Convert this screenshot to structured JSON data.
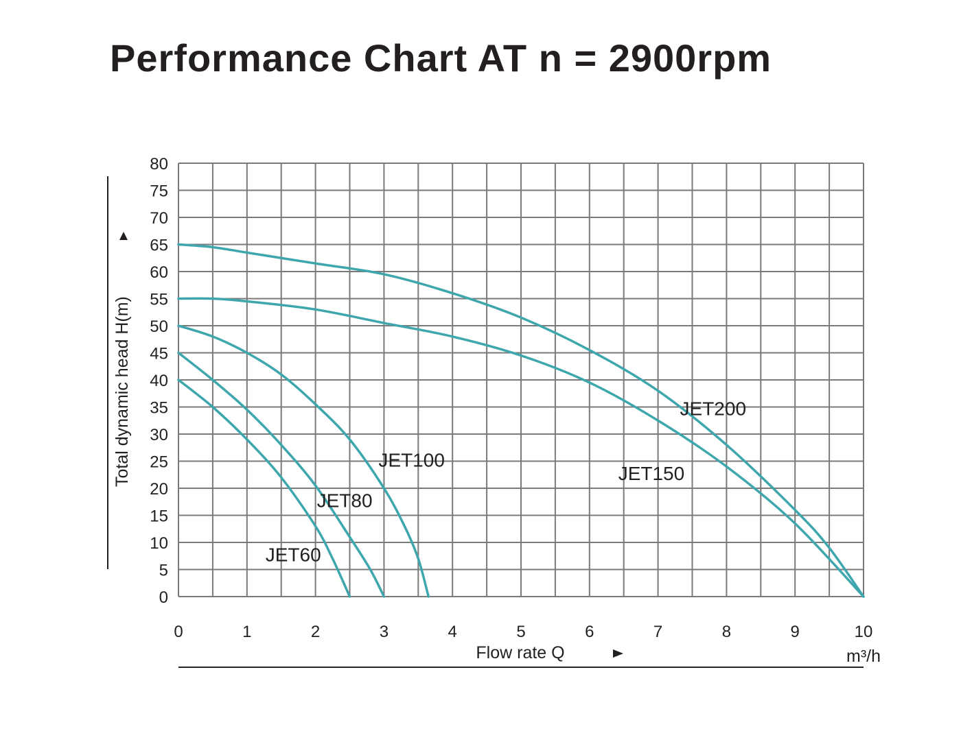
{
  "chart_data": {
    "type": "line",
    "title": "Performance Chart AT n = 2900rpm",
    "xlabel": "Flow rate Q",
    "xunit": "m³/h",
    "ylabel": "Total dynamic head H(m)",
    "xlim": [
      0,
      10
    ],
    "ylim": [
      0,
      80
    ],
    "x_ticks": [
      0,
      1,
      2,
      3,
      4,
      5,
      6,
      7,
      8,
      9,
      10
    ],
    "y_ticks": [
      0,
      5,
      10,
      15,
      20,
      25,
      30,
      35,
      40,
      45,
      50,
      55,
      60,
      65,
      70,
      75,
      80
    ],
    "grid": true,
    "line_color": "#3ea7ad",
    "series": [
      {
        "name": "JET60",
        "x": [
          0,
          0.5,
          1,
          1.5,
          2,
          2.25,
          2.5
        ],
        "y": [
          40,
          35,
          29,
          22,
          13,
          7,
          0
        ]
      },
      {
        "name": "JET80",
        "x": [
          0,
          0.5,
          1,
          1.5,
          2,
          2.5,
          2.8,
          3
        ],
        "y": [
          45,
          40,
          34.5,
          28,
          20.5,
          11,
          5,
          0
        ]
      },
      {
        "name": "JET100",
        "x": [
          0,
          0.5,
          1,
          1.5,
          2,
          2.5,
          3,
          3.3,
          3.5,
          3.65
        ],
        "y": [
          50,
          48,
          45,
          41,
          35.5,
          29,
          20,
          13,
          7,
          0
        ]
      },
      {
        "name": "JET150",
        "x": [
          0,
          0.5,
          1,
          2,
          3,
          4,
          5,
          6,
          7,
          8,
          9,
          10
        ],
        "y": [
          55,
          55,
          54.5,
          53,
          50.5,
          48,
          44.5,
          39.5,
          32.5,
          24,
          13.5,
          0
        ]
      },
      {
        "name": "JET200",
        "x": [
          0,
          0.5,
          1,
          2,
          3,
          4,
          5,
          6,
          7,
          8,
          9,
          9.5,
          10
        ],
        "y": [
          65,
          64.5,
          63.5,
          61.5,
          59.5,
          56,
          51.5,
          45.5,
          38,
          28,
          16,
          9,
          0
        ]
      }
    ],
    "annotations": [
      {
        "text": "JET60",
        "x": 1.27,
        "y": 6.5
      },
      {
        "text": "JET80",
        "x": 2.02,
        "y": 16.5
      },
      {
        "text": "JET100",
        "x": 2.92,
        "y": 24
      },
      {
        "text": "JET150",
        "x": 6.42,
        "y": 21.5
      },
      {
        "text": "JET200",
        "x": 7.32,
        "y": 33.5
      }
    ]
  }
}
